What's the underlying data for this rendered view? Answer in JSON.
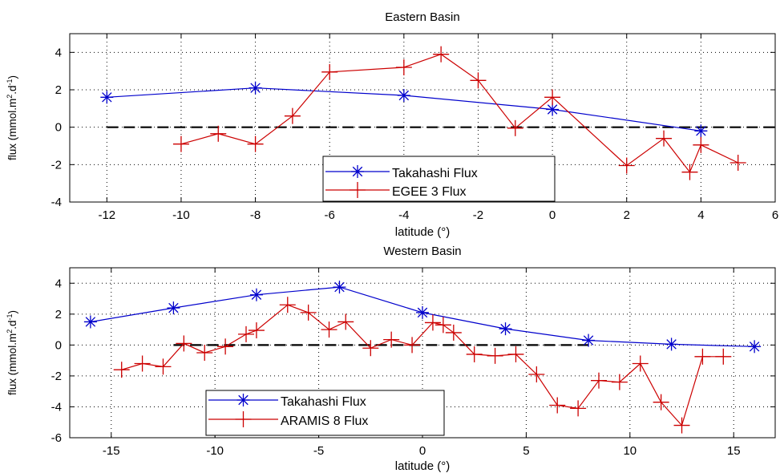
{
  "chart_data": [
    {
      "type": "line",
      "title": "Eastern Basin",
      "xlabel": "latitude (°)",
      "ylabel": "flux (mmol.m",
      "ylabel_sup1": "2",
      "ylabel_mid": ".d",
      "ylabel_sup2": "-1",
      "ylabel_end": ")",
      "xlim": [
        -13,
        6
      ],
      "ylim": [
        -4,
        5
      ],
      "xticks": [
        "-12",
        "-10",
        "-8",
        "-6",
        "-4",
        "-2",
        "0",
        "2",
        "4",
        "6"
      ],
      "yticks": [
        "-4",
        "-2",
        "0",
        "2",
        "4"
      ],
      "grid": true,
      "legend_position": "bottom-center",
      "zero_line": {
        "style": "dashed",
        "from": -12,
        "to": 6
      },
      "series": [
        {
          "name": "Takahashi Flux",
          "color": "#0000cc",
          "marker": "asterisk",
          "x": [
            -12,
            -8,
            -4,
            0,
            4
          ],
          "y": [
            1.6,
            2.1,
            1.7,
            0.95,
            -0.2
          ]
        },
        {
          "name": "EGEE 3 Flux",
          "color": "#cc0000",
          "marker": "plus",
          "x": [
            -10,
            -9,
            -8,
            -7,
            -6,
            -4,
            -3,
            -2,
            -1,
            0,
            2,
            3,
            3.7,
            4,
            5
          ],
          "y": [
            -0.9,
            -0.35,
            -0.9,
            0.6,
            2.95,
            3.2,
            3.9,
            2.5,
            -0.05,
            1.6,
            -2.05,
            -0.6,
            -2.4,
            -0.95,
            -1.9
          ]
        }
      ]
    },
    {
      "type": "line",
      "title": "Western Basin",
      "xlabel": "latitude (°)",
      "ylabel": "flux (mmol.m",
      "ylabel_sup1": "2",
      "ylabel_mid": ".d",
      "ylabel_sup2": "-1",
      "ylabel_end": ")",
      "xlim": [
        -17,
        17
      ],
      "ylim": [
        -6,
        5
      ],
      "xticks": [
        "-15",
        "-10",
        "-5",
        "0",
        "5",
        "10",
        "15"
      ],
      "yticks": [
        "-6",
        "-4",
        "-2",
        "0",
        "2",
        "4"
      ],
      "grid": true,
      "legend_position": "bottom-left",
      "zero_line": {
        "style": "dashed",
        "from": -12,
        "to": 8
      },
      "series": [
        {
          "name": "Takahashi Flux",
          "color": "#0000cc",
          "marker": "asterisk",
          "x": [
            -16,
            -12,
            -8,
            -4,
            0,
            4,
            8,
            12,
            16
          ],
          "y": [
            1.5,
            2.4,
            3.25,
            3.75,
            2.1,
            1.05,
            0.3,
            0.05,
            -0.1
          ]
        },
        {
          "name": "ARAMIS 8 Flux",
          "color": "#cc0000",
          "marker": "plus",
          "x": [
            -14.5,
            -13.5,
            -12.5,
            -11.5,
            -10.5,
            -9.5,
            -8.5,
            -8,
            -6.5,
            -5.5,
            -4.5,
            -3.7,
            -2.5,
            -1.5,
            -0.5,
            0.5,
            1,
            1.5,
            2.5,
            3.5,
            4.5,
            5.5,
            6.5,
            7.5,
            8.5,
            9.5,
            10.5,
            11.5,
            12.5,
            13.5,
            14.5
          ],
          "y": [
            -1.6,
            -1.2,
            -1.4,
            0.1,
            -0.5,
            -0.1,
            0.7,
            0.95,
            2.6,
            2.1,
            1.0,
            1.5,
            -0.2,
            0.35,
            0.0,
            1.45,
            1.3,
            0.8,
            -0.6,
            -0.7,
            -0.6,
            -1.9,
            -3.9,
            -4.1,
            -2.3,
            -2.4,
            -1.2,
            -3.7,
            -5.2,
            -0.75,
            -0.75
          ]
        }
      ]
    }
  ]
}
